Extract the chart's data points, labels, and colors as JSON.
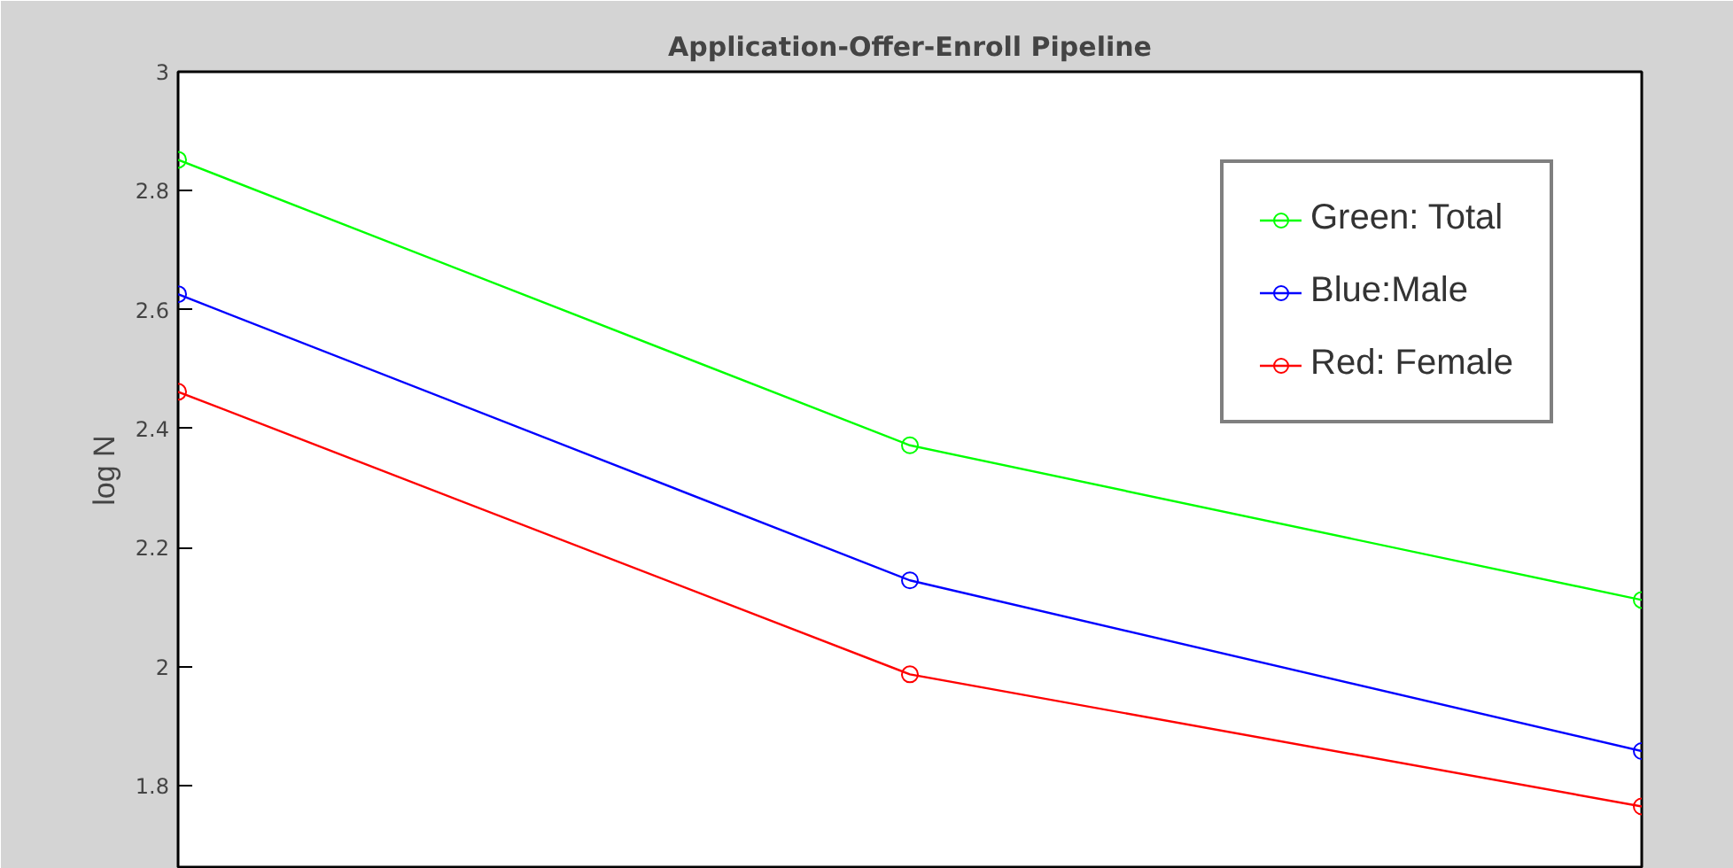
{
  "chart_data": {
    "type": "line",
    "title": "Application-Offer-Enroll Pipeline",
    "ylabel": "log N",
    "categories": [
      null,
      null,
      null
    ],
    "series": [
      {
        "name": "Green: Total",
        "color": "#00ff00",
        "values": [
          2.852,
          2.372,
          2.112
        ]
      },
      {
        "name": "Blue:Male",
        "color": "#0000ff",
        "values": [
          2.626,
          2.145,
          1.858
        ]
      },
      {
        "name": "Red: Female",
        "color": "#ff0000",
        "values": [
          2.462,
          1.987,
          1.765
        ]
      }
    ],
    "ylim": [
      1.66,
      3
    ],
    "yticks": [
      1.8,
      2,
      2.2,
      2.4,
      2.6,
      2.8,
      3
    ],
    "legend": "top right",
    "marker": "circle",
    "line_style": "solid",
    "grid": false
  }
}
